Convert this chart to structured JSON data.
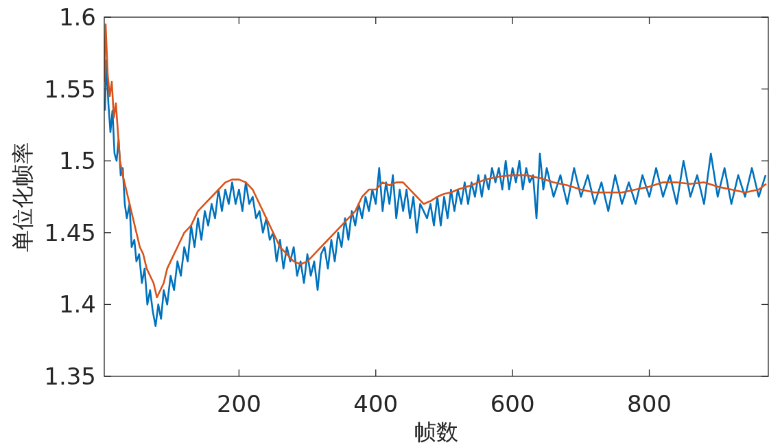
{
  "chart_data": {
    "type": "line",
    "xlabel": "帧数",
    "ylabel": "单位化帧率",
    "xlim": [
      3,
      974
    ],
    "xticks": [
      200,
      400,
      600,
      800
    ],
    "ylim": [
      1.35,
      1.6
    ],
    "yticks": [
      1.35,
      1.4,
      1.45,
      1.5,
      1.55,
      1.6
    ],
    "grid": false,
    "series": [
      {
        "color": "#0072bd",
        "x": [
          4,
          6,
          9,
          12,
          15,
          18,
          21,
          24,
          27,
          30,
          33,
          36,
          40,
          43,
          47,
          50,
          54,
          58,
          62,
          66,
          70,
          74,
          78,
          82,
          86,
          90,
          95,
          100,
          105,
          110,
          115,
          120,
          125,
          130,
          135,
          140,
          145,
          150,
          155,
          160,
          165,
          170,
          175,
          180,
          185,
          190,
          195,
          200,
          205,
          210,
          215,
          220,
          225,
          230,
          235,
          240,
          245,
          250,
          255,
          260,
          265,
          270,
          275,
          280,
          285,
          290,
          295,
          300,
          305,
          310,
          315,
          320,
          325,
          330,
          335,
          340,
          345,
          350,
          355,
          360,
          365,
          370,
          375,
          380,
          385,
          390,
          395,
          400,
          405,
          410,
          415,
          420,
          425,
          430,
          435,
          440,
          445,
          450,
          455,
          460,
          465,
          470,
          475,
          480,
          485,
          490,
          495,
          500,
          505,
          510,
          515,
          520,
          525,
          530,
          535,
          540,
          545,
          550,
          555,
          560,
          565,
          570,
          575,
          580,
          585,
          590,
          595,
          600,
          605,
          610,
          615,
          620,
          625,
          630,
          635,
          640,
          645,
          650,
          660,
          670,
          680,
          690,
          700,
          710,
          720,
          730,
          740,
          750,
          760,
          770,
          780,
          790,
          800,
          810,
          820,
          830,
          840,
          850,
          860,
          870,
          880,
          890,
          900,
          910,
          920,
          930,
          940,
          950,
          960,
          970
        ],
        "values": [
          1.535,
          1.57,
          1.54,
          1.52,
          1.535,
          1.505,
          1.5,
          1.515,
          1.49,
          1.495,
          1.47,
          1.46,
          1.47,
          1.44,
          1.445,
          1.43,
          1.435,
          1.415,
          1.425,
          1.4,
          1.41,
          1.395,
          1.385,
          1.4,
          1.39,
          1.41,
          1.4,
          1.42,
          1.41,
          1.43,
          1.42,
          1.44,
          1.43,
          1.455,
          1.44,
          1.46,
          1.445,
          1.465,
          1.455,
          1.47,
          1.46,
          1.48,
          1.465,
          1.48,
          1.47,
          1.485,
          1.47,
          1.48,
          1.465,
          1.485,
          1.47,
          1.475,
          1.46,
          1.465,
          1.45,
          1.46,
          1.445,
          1.45,
          1.43,
          1.445,
          1.425,
          1.44,
          1.43,
          1.44,
          1.42,
          1.43,
          1.415,
          1.435,
          1.42,
          1.43,
          1.41,
          1.435,
          1.44,
          1.425,
          1.445,
          1.43,
          1.45,
          1.44,
          1.46,
          1.445,
          1.465,
          1.455,
          1.47,
          1.46,
          1.475,
          1.465,
          1.48,
          1.47,
          1.495,
          1.465,
          1.485,
          1.47,
          1.49,
          1.46,
          1.48,
          1.465,
          1.48,
          1.46,
          1.475,
          1.45,
          1.47,
          1.465,
          1.46,
          1.47,
          1.455,
          1.475,
          1.455,
          1.475,
          1.46,
          1.48,
          1.465,
          1.48,
          1.47,
          1.485,
          1.47,
          1.485,
          1.475,
          1.49,
          1.475,
          1.49,
          1.48,
          1.495,
          1.485,
          1.495,
          1.48,
          1.5,
          1.48,
          1.495,
          1.485,
          1.5,
          1.48,
          1.495,
          1.485,
          1.49,
          1.46,
          1.505,
          1.48,
          1.495,
          1.475,
          1.49,
          1.47,
          1.495,
          1.475,
          1.49,
          1.47,
          1.485,
          1.465,
          1.49,
          1.47,
          1.485,
          1.47,
          1.49,
          1.475,
          1.495,
          1.475,
          1.49,
          1.47,
          1.5,
          1.475,
          1.49,
          1.47,
          1.505,
          1.475,
          1.495,
          1.47,
          1.49,
          1.475,
          1.495,
          1.475,
          1.49
        ]
      },
      {
        "color": "#d95319",
        "x": [
          3,
          5,
          8,
          11,
          14,
          17,
          20,
          23,
          26,
          30,
          35,
          40,
          45,
          50,
          55,
          60,
          65,
          70,
          75,
          80,
          85,
          90,
          95,
          100,
          110,
          120,
          130,
          140,
          150,
          160,
          170,
          180,
          190,
          200,
          210,
          220,
          230,
          240,
          250,
          260,
          270,
          280,
          290,
          300,
          310,
          320,
          330,
          340,
          350,
          360,
          370,
          380,
          390,
          400,
          410,
          420,
          430,
          440,
          450,
          460,
          470,
          480,
          490,
          500,
          510,
          520,
          540,
          560,
          580,
          600,
          620,
          640,
          660,
          680,
          700,
          720,
          740,
          760,
          780,
          800,
          820,
          840,
          860,
          880,
          900,
          920,
          940,
          960,
          971
        ],
        "values": [
          1.555,
          1.595,
          1.56,
          1.545,
          1.555,
          1.53,
          1.54,
          1.52,
          1.5,
          1.49,
          1.48,
          1.47,
          1.46,
          1.45,
          1.44,
          1.435,
          1.425,
          1.42,
          1.415,
          1.405,
          1.41,
          1.415,
          1.425,
          1.43,
          1.44,
          1.45,
          1.455,
          1.465,
          1.47,
          1.475,
          1.48,
          1.485,
          1.487,
          1.487,
          1.485,
          1.48,
          1.47,
          1.46,
          1.45,
          1.44,
          1.435,
          1.43,
          1.428,
          1.43,
          1.435,
          1.44,
          1.445,
          1.45,
          1.455,
          1.46,
          1.465,
          1.475,
          1.48,
          1.48,
          1.485,
          1.483,
          1.485,
          1.485,
          1.48,
          1.475,
          1.47,
          1.472,
          1.475,
          1.477,
          1.478,
          1.48,
          1.483,
          1.487,
          1.489,
          1.49,
          1.49,
          1.488,
          1.485,
          1.483,
          1.48,
          1.478,
          1.478,
          1.478,
          1.48,
          1.482,
          1.485,
          1.485,
          1.484,
          1.485,
          1.482,
          1.48,
          1.478,
          1.48,
          1.484
        ]
      }
    ]
  }
}
